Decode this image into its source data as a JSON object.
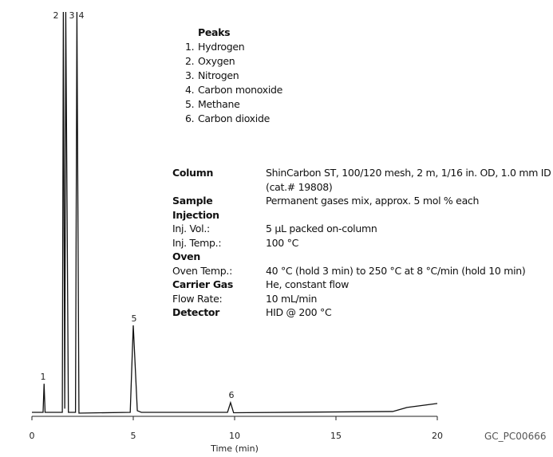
{
  "chart_data": {
    "type": "line",
    "x": [
      0,
      0.55,
      0.6,
      0.65,
      1.5,
      1.55,
      1.62,
      1.67,
      1.8,
      2.15,
      2.22,
      2.32,
      4.85,
      5.0,
      5.2,
      5.4,
      9.65,
      9.8,
      9.95,
      17.8,
      18.5,
      20
    ],
    "values": [
      0.6,
      0.6,
      7.7,
      0.6,
      0.6,
      100,
      1.5,
      100,
      0.6,
      0.6,
      100,
      0.4,
      0.6,
      22.2,
      1.0,
      0.6,
      0.6,
      3.0,
      0.5,
      0.8,
      1.8,
      2.8
    ],
    "color": "#111111",
    "xlim": [
      0,
      20
    ],
    "xticks": [
      0,
      5,
      10,
      15,
      20
    ],
    "ylim": [
      0,
      100
    ],
    "x_label": "Time (min)",
    "peak_labels": [
      "1",
      "2",
      "3",
      "4",
      "5",
      "6"
    ]
  },
  "peaks": {
    "title": "Peaks",
    "items": [
      {
        "num": "1.",
        "name": "Hydrogen"
      },
      {
        "num": "2.",
        "name": "Oxygen"
      },
      {
        "num": "3.",
        "name": "Nitrogen"
      },
      {
        "num": "4.",
        "name": "Carbon monoxide"
      },
      {
        "num": "5.",
        "name": "Methane"
      },
      {
        "num": "6.",
        "name": "Carbon dioxide"
      }
    ]
  },
  "conditions": [
    {
      "label": "Column",
      "bold": true,
      "value": [
        "ShinCarbon ST, 100/120 mesh, 2 m, 1/16 in. OD, 1.0 mm ID",
        "(cat.# 19808)"
      ]
    },
    {
      "label": "Sample",
      "bold": true,
      "value": [
        "Permanent gases mix, approx. 5 mol % each"
      ]
    },
    {
      "label": "Injection",
      "bold": true
    },
    {
      "label": "Inj. Vol.:",
      "value": [
        "5 µL packed on-column"
      ]
    },
    {
      "label": "Inj. Temp.:",
      "value": [
        "100 °C"
      ]
    },
    {
      "label": "Oven",
      "bold": true
    },
    {
      "label": "Oven Temp.:",
      "value": [
        "40 °C (hold 3 min) to 250 °C at 8 °C/min (hold 10 min)"
      ]
    },
    {
      "label": "Carrier Gas",
      "bold": true,
      "value": [
        "He, constant flow"
      ]
    },
    {
      "label": "Flow Rate:",
      "value": [
        "10 mL/min"
      ]
    },
    {
      "label": "Detector",
      "bold": true,
      "value": [
        "HID @ 200 °C"
      ]
    }
  ],
  "code": "GC_PC00666"
}
